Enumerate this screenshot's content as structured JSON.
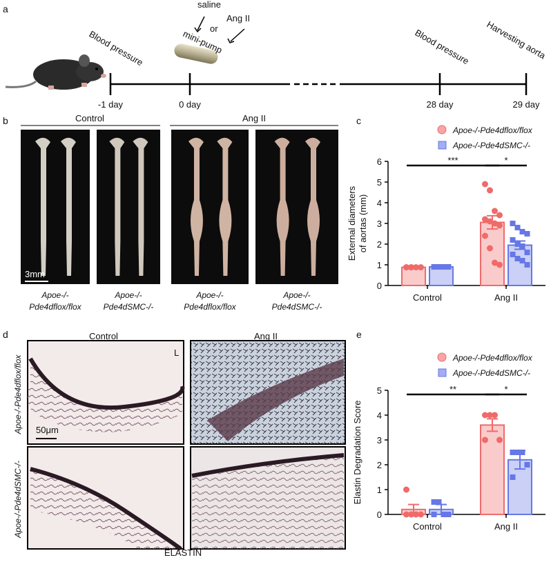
{
  "panel_labels": [
    "a",
    "b",
    "c",
    "d",
    "e"
  ],
  "timeline": {
    "events": [
      "Blood pressure",
      "Blood pressure",
      "Harvesting aorta"
    ],
    "treatment": [
      "saline",
      "or",
      "Ang II",
      "mini-pump"
    ],
    "days": [
      "-1 day",
      "0 day",
      "28 day",
      "29 day"
    ]
  },
  "panel_b": {
    "groups": [
      "Control",
      "Ang II"
    ],
    "scale_bar": "3mm",
    "captions": [
      [
        "Apoe-/-",
        "Pde4dflox/flox"
      ],
      [
        "Apoe-/-",
        "Pde4dSMC-/-"
      ],
      [
        "Apoe-/-",
        "Pde4dflox/flox"
      ],
      [
        "Apoe-/-",
        "Pde4dSMC-/-"
      ]
    ]
  },
  "panel_d": {
    "columns": [
      "Control",
      "Ang II"
    ],
    "rows": [
      "Apoe-/-Pde4dflox/flox",
      "Apoe-/-Pde4dSMC-/-"
    ],
    "scale_bar": "50μm",
    "lumen": "L",
    "stain": "ELASTIN"
  },
  "chart_data": [
    {
      "type": "bar",
      "y_label": [
        "External diameters",
        "of aortas (mm)"
      ],
      "categories": [
        "Control",
        "Ang II"
      ],
      "ylim": [
        0,
        6
      ],
      "yticks": [
        0,
        1,
        2,
        3,
        4,
        5,
        6
      ],
      "annotations": [
        "***",
        "*"
      ],
      "series": [
        {
          "name": "Apoe-/-Pde4dflox/flox",
          "color": "#f06a6a",
          "marker": "circle",
          "values": [
            0.88,
            3.05
          ],
          "errors": [
            0.01,
            0.32
          ],
          "points": [
            [
              0.88,
              0.88,
              0.88,
              0.88,
              0.88,
              0.88
            ],
            [
              4.9,
              4.6,
              3.6,
              3.4,
              3.2,
              3.1,
              3.0,
              2.9,
              2.4,
              1.8,
              1.1,
              1.0
            ]
          ]
        },
        {
          "name": "Apoe-/-Pde4dSMC-/-",
          "color": "#6677e6",
          "marker": "square",
          "values": [
            0.9,
            1.95
          ],
          "errors": [
            0.01,
            0.2
          ],
          "points": [
            [
              0.9,
              0.9,
              0.9,
              0.9,
              0.9,
              0.9,
              0.9
            ],
            [
              3.0,
              2.8,
              2.6,
              2.5,
              2.2,
              2.0,
              1.9,
              1.6,
              1.5,
              1.3,
              1.2,
              1.0
            ]
          ]
        }
      ]
    },
    {
      "type": "bar",
      "y_label": [
        "Elastin  Degradation Score"
      ],
      "categories": [
        "Control",
        "Ang II"
      ],
      "ylim": [
        0,
        5
      ],
      "yticks": [
        0,
        1,
        2,
        3,
        4,
        5
      ],
      "annotations": [
        "**",
        "*"
      ],
      "series": [
        {
          "name": "Apoe-/-Pde4dflox/flox",
          "color": "#f06a6a",
          "marker": "circle",
          "values": [
            0.2,
            3.6
          ],
          "errors": [
            0.2,
            0.25
          ],
          "points": [
            [
              1,
              0,
              0,
              0,
              0
            ],
            [
              4,
              4,
              4,
              3,
              3
            ]
          ]
        },
        {
          "name": "Apoe-/-Pde4dSMC-/-",
          "color": "#6677e6",
          "marker": "square",
          "values": [
            0.2,
            2.2
          ],
          "errors": [
            0.2,
            0.37
          ],
          "points": [
            [
              0.5,
              0.5,
              0,
              0,
              0
            ],
            [
              2.5,
              2.5,
              2.5,
              2,
              1.5
            ]
          ]
        }
      ]
    }
  ]
}
